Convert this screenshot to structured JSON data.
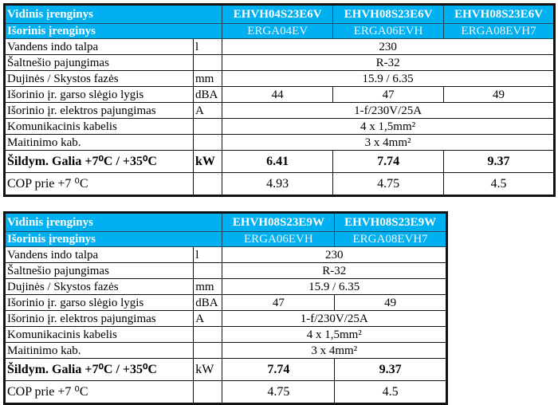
{
  "colors": {
    "header_bg": "#00b0f0",
    "header_text": "#ffffff",
    "border": "#111111"
  },
  "tables": [
    {
      "indoor_label": "Vidinis įrenginys",
      "outdoor_label": "Išorinis įrenginys",
      "indoor_models": [
        "EHVH04S23E6V",
        "EHVH08S23E6V",
        "EHVH08S23E6V"
      ],
      "outdoor_models": [
        "ERGA04EV",
        "ERGA06EVH",
        "ERGA08EVH7"
      ],
      "rows": [
        {
          "label": "Vandens indo talpa",
          "unit": "l",
          "values": [
            "230"
          ]
        },
        {
          "label": "Šaltnešio pajungimas",
          "unit": "",
          "values": [
            "R-32"
          ]
        },
        {
          "label": "Dujinės / Skystos fazės",
          "unit": "mm",
          "values": [
            "15.9 / 6.35"
          ]
        },
        {
          "label": "Išorinio įr. garso slėgio lygis",
          "unit": "dBA",
          "values": [
            "44",
            "47",
            "49"
          ]
        },
        {
          "label": "Išorinio įr. elektros pajungimas",
          "unit": "A",
          "values": [
            "1-f/230V/25A"
          ]
        },
        {
          "label": "Komunikacinis kabelis",
          "unit": "",
          "values": [
            "4 x 1,5mm²"
          ]
        },
        {
          "label": "Maitinimo kab.",
          "unit": "",
          "values": [
            "3 x 4mm²"
          ]
        },
        {
          "label": "Šildym. Galia +7⁰C / +35⁰C",
          "unit": "kW",
          "values": [
            "6.41",
            "7.74",
            "9.37"
          ],
          "bold": true,
          "unit_bold": true
        },
        {
          "label": "COP prie +7 ⁰C",
          "unit": "",
          "values": [
            "4.93",
            "4.75",
            "4.5"
          ],
          "big": true
        }
      ]
    },
    {
      "indoor_label": "Vidinis įrenginys",
      "outdoor_label": "Išorinis įrenginys",
      "indoor_models": [
        "EHVH08S23E9W",
        "EHVH08S23E9W"
      ],
      "outdoor_models": [
        "ERGA06EVH",
        "ERGA08EVH7"
      ],
      "rows": [
        {
          "label": "Vandens indo talpa",
          "unit": "l",
          "values": [
            "230"
          ]
        },
        {
          "label": "Šaltnešio pajungimas",
          "unit": "",
          "values": [
            "R-32"
          ]
        },
        {
          "label": "Dujinės / Skystos fazės",
          "unit": "mm",
          "values": [
            "15.9 / 6.35"
          ]
        },
        {
          "label": "Išorinio įr. garso slėgio lygis",
          "unit": "dBA",
          "values": [
            "47",
            "49"
          ]
        },
        {
          "label": "Išorinio įr. elektros pajungimas",
          "unit": "A",
          "values": [
            "1-f/230V/25A"
          ]
        },
        {
          "label": "Komunikacinis kabelis",
          "unit": "",
          "values": [
            "4 x 1,5mm²"
          ]
        },
        {
          "label": "Maitinimo kab.",
          "unit": "",
          "values": [
            "3 x 4mm²"
          ]
        },
        {
          "label": "Šildym. Galia +7⁰C / +35⁰C",
          "unit": "kW",
          "values": [
            "7.74",
            "9.37"
          ],
          "bold": true
        },
        {
          "label": "COP prie +7 ⁰C",
          "unit": "",
          "values": [
            "4.75",
            "4.5"
          ],
          "big": true
        }
      ]
    }
  ]
}
